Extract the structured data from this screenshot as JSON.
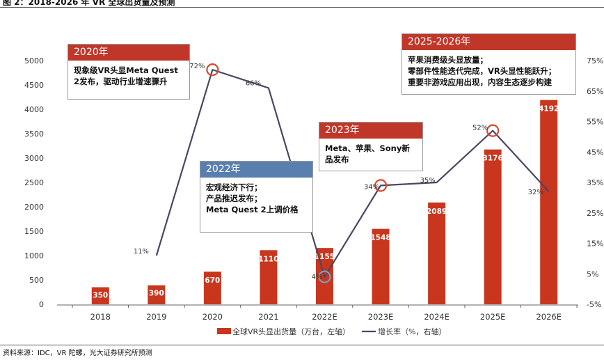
{
  "page": {
    "title": "图 2：2018-2026 年 VR 全球出货量及预测",
    "source": "资料来源：IDC，VR 陀螺，光大证券研究所预测"
  },
  "colors": {
    "bar": "#C8361E",
    "line": "#4B4663",
    "callout_red": "#C0372A",
    "callout_blue": "#5A7FAF",
    "marker_red": "#D9462E",
    "marker_blue": "#7A9CC6"
  },
  "callouts": [
    {
      "year": "2020年",
      "lines": [
        "现象级VR头显Meta Quest",
        "2发布，驱动行业增速骤升"
      ]
    },
    {
      "year": "2022年",
      "lines": [
        "宏观经济下行；",
        "产品推迟发布；",
        "Meta Quest 2上调价格"
      ]
    },
    {
      "year": "2023年",
      "lines": [
        "Meta、苹果、Sony新",
        "品发布"
      ]
    },
    {
      "year": "2025-2026年",
      "lines": [
        "苹果消费级头显放量；",
        "零部件性能迭代完成，VR头显性能跃升；",
        "重要非游戏应用出现，内容生态逐步构建"
      ]
    }
  ],
  "chart_data": {
    "type": "bar",
    "categories": [
      "2018",
      "2019",
      "2020",
      "2021",
      "2022E",
      "2023E",
      "2024E",
      "2025E",
      "2026E"
    ],
    "series": [
      {
        "name": "全球VR头显出货量（万台，左轴）",
        "type": "bar",
        "axis": "left",
        "values": [
          350,
          390,
          670,
          1110,
          1155,
          1548,
          2089,
          3176,
          4192
        ],
        "labels": [
          "350",
          "390",
          "670",
          "1110",
          "1155",
          "1548",
          "2089",
          "3176",
          "4192"
        ]
      },
      {
        "name": "增长率（%，右轴）",
        "type": "line",
        "axis": "right",
        "values": [
          null,
          11,
          72,
          66,
          4,
          34,
          35,
          52,
          32
        ],
        "labels": [
          "",
          "11%",
          "72%",
          "66%",
          "4%",
          "34%",
          "35%",
          "52%",
          "32%"
        ]
      }
    ],
    "y_left": {
      "ylim": [
        0,
        5000
      ],
      "ticks": [
        "0",
        "500",
        "1000",
        "1500",
        "2000",
        "2500",
        "3000",
        "3500",
        "4000",
        "4500",
        "5000"
      ]
    },
    "y_right": {
      "ylim": [
        -5,
        75
      ],
      "ticks": [
        "-5%",
        "5%",
        "15%",
        "25%",
        "35%",
        "45%",
        "55%",
        "65%",
        "75%"
      ]
    },
    "legend": {
      "position": "bottom",
      "bar_label": "全球VR头显出货量（万台，左轴）",
      "line_label": "增长率（%，右轴）"
    },
    "grid": false,
    "highlighted_points": [
      "2020",
      "2022E",
      "2023E",
      "2025E"
    ]
  }
}
